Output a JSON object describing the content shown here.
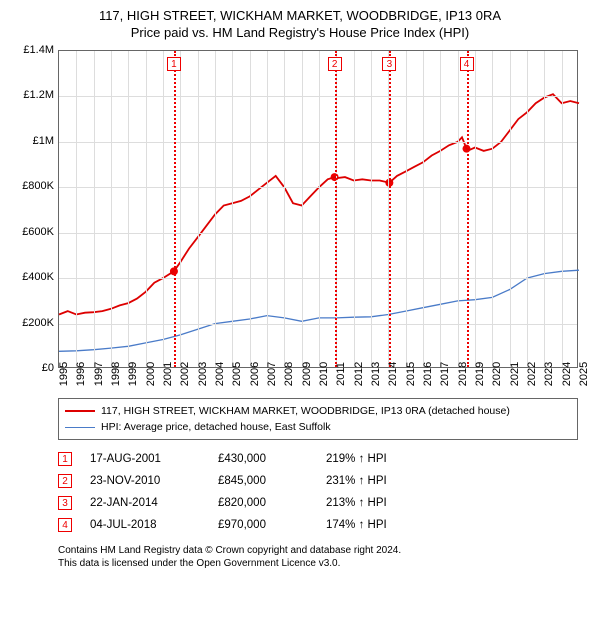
{
  "title_line1": "117, HIGH STREET, WICKHAM MARKET, WOODBRIDGE, IP13 0RA",
  "title_line2": "Price paid vs. HM Land Registry's House Price Index (HPI)",
  "chart": {
    "type": "line",
    "background_color": "#ffffff",
    "grid_color": "#dddddd",
    "border_color": "#666666",
    "xlim": [
      1995,
      2025
    ],
    "ylim": [
      0,
      1400000
    ],
    "xtick_step": 1,
    "ytick_step": 200000,
    "ytick_labels": [
      "£0",
      "£200K",
      "£400K",
      "£600K",
      "£800K",
      "£1M",
      "£1.2M",
      "£1.4M"
    ],
    "xtick_labels": [
      "1995",
      "1996",
      "1997",
      "1998",
      "1999",
      "2000",
      "2001",
      "2002",
      "2003",
      "2004",
      "2005",
      "2006",
      "2007",
      "2008",
      "2009",
      "2010",
      "2011",
      "2012",
      "2013",
      "2014",
      "2015",
      "2016",
      "2017",
      "2018",
      "2019",
      "2020",
      "2021",
      "2022",
      "2023",
      "2024",
      "2025"
    ],
    "tick_fontsize": 11,
    "series": [
      {
        "name": "property",
        "label": "117, HIGH STREET, WICKHAM MARKET, WOODBRIDGE, IP13 0RA (detached house)",
        "color": "#dd0000",
        "width": 1.8,
        "data": [
          [
            1995,
            240000
          ],
          [
            1995.5,
            255000
          ],
          [
            1996,
            240000
          ],
          [
            1996.5,
            248000
          ],
          [
            1997,
            250000
          ],
          [
            1997.5,
            255000
          ],
          [
            1998,
            265000
          ],
          [
            1998.5,
            280000
          ],
          [
            1999,
            290000
          ],
          [
            1999.5,
            310000
          ],
          [
            2000,
            340000
          ],
          [
            2000.5,
            380000
          ],
          [
            2001,
            400000
          ],
          [
            2001.63,
            430000
          ],
          [
            2002,
            470000
          ],
          [
            2002.5,
            530000
          ],
          [
            2003,
            580000
          ],
          [
            2003.5,
            630000
          ],
          [
            2004,
            680000
          ],
          [
            2004.5,
            720000
          ],
          [
            2005,
            730000
          ],
          [
            2005.5,
            740000
          ],
          [
            2006,
            760000
          ],
          [
            2006.5,
            790000
          ],
          [
            2007,
            820000
          ],
          [
            2007.5,
            850000
          ],
          [
            2008,
            800000
          ],
          [
            2008.5,
            730000
          ],
          [
            2009,
            720000
          ],
          [
            2009.5,
            760000
          ],
          [
            2010,
            800000
          ],
          [
            2010.5,
            835000
          ],
          [
            2010.9,
            845000
          ],
          [
            2011,
            840000
          ],
          [
            2011.5,
            845000
          ],
          [
            2012,
            830000
          ],
          [
            2012.5,
            835000
          ],
          [
            2013,
            830000
          ],
          [
            2013.5,
            830000
          ],
          [
            2014.06,
            820000
          ],
          [
            2014.5,
            850000
          ],
          [
            2015,
            870000
          ],
          [
            2015.5,
            890000
          ],
          [
            2016,
            910000
          ],
          [
            2016.5,
            940000
          ],
          [
            2017,
            960000
          ],
          [
            2017.5,
            985000
          ],
          [
            2018,
            1000000
          ],
          [
            2018.25,
            1020000
          ],
          [
            2018.51,
            970000
          ],
          [
            2018.7,
            965000
          ],
          [
            2019,
            975000
          ],
          [
            2019.5,
            960000
          ],
          [
            2020,
            970000
          ],
          [
            2020.5,
            1000000
          ],
          [
            2021,
            1050000
          ],
          [
            2021.5,
            1100000
          ],
          [
            2022,
            1130000
          ],
          [
            2022.5,
            1170000
          ],
          [
            2023,
            1195000
          ],
          [
            2023.5,
            1210000
          ],
          [
            2024,
            1170000
          ],
          [
            2024.5,
            1180000
          ],
          [
            2025,
            1170000
          ]
        ]
      },
      {
        "name": "hpi",
        "label": "HPI: Average price, detached house, East Suffolk",
        "color": "#4a7bc8",
        "width": 1.3,
        "data": [
          [
            1995,
            78000
          ],
          [
            1996,
            80000
          ],
          [
            1997,
            85000
          ],
          [
            1998,
            92000
          ],
          [
            1999,
            100000
          ],
          [
            2000,
            115000
          ],
          [
            2001,
            130000
          ],
          [
            2002,
            150000
          ],
          [
            2003,
            175000
          ],
          [
            2004,
            200000
          ],
          [
            2005,
            210000
          ],
          [
            2006,
            220000
          ],
          [
            2007,
            235000
          ],
          [
            2008,
            225000
          ],
          [
            2009,
            210000
          ],
          [
            2010,
            225000
          ],
          [
            2011,
            225000
          ],
          [
            2012,
            228000
          ],
          [
            2013,
            230000
          ],
          [
            2014,
            240000
          ],
          [
            2015,
            255000
          ],
          [
            2016,
            270000
          ],
          [
            2017,
            285000
          ],
          [
            2018,
            300000
          ],
          [
            2019,
            305000
          ],
          [
            2020,
            315000
          ],
          [
            2021,
            350000
          ],
          [
            2022,
            400000
          ],
          [
            2023,
            420000
          ],
          [
            2024,
            430000
          ],
          [
            2025,
            435000
          ]
        ]
      }
    ],
    "markers": [
      {
        "x": 2001.63,
        "y": 430000,
        "num": "1"
      },
      {
        "x": 2010.9,
        "y": 845000,
        "num": "2"
      },
      {
        "x": 2014.06,
        "y": 820000,
        "num": "3"
      },
      {
        "x": 2018.51,
        "y": 970000,
        "num": "4"
      }
    ],
    "marker_color": "#ee0000",
    "marker_dot_radius": 4
  },
  "legend": {
    "border_color": "#666666",
    "fontsize": 10.5,
    "items": [
      {
        "color": "#dd0000",
        "width": 2,
        "label": "117, HIGH STREET, WICKHAM MARKET, WOODBRIDGE, IP13 0RA (detached house)"
      },
      {
        "color": "#4a7bc8",
        "width": 1.3,
        "label": "HPI: Average price, detached house, East Suffolk"
      }
    ]
  },
  "events": [
    {
      "num": "1",
      "date": "17-AUG-2001",
      "price": "£430,000",
      "pct": "219% ↑ HPI"
    },
    {
      "num": "2",
      "date": "23-NOV-2010",
      "price": "£845,000",
      "pct": "231% ↑ HPI"
    },
    {
      "num": "3",
      "date": "22-JAN-2014",
      "price": "£820,000",
      "pct": "213% ↑ HPI"
    },
    {
      "num": "4",
      "date": "04-JUL-2018",
      "price": "£970,000",
      "pct": "174% ↑ HPI"
    }
  ],
  "licence_line1": "Contains HM Land Registry data © Crown copyright and database right 2024.",
  "licence_line2": "This data is licensed under the Open Government Licence v3.0."
}
